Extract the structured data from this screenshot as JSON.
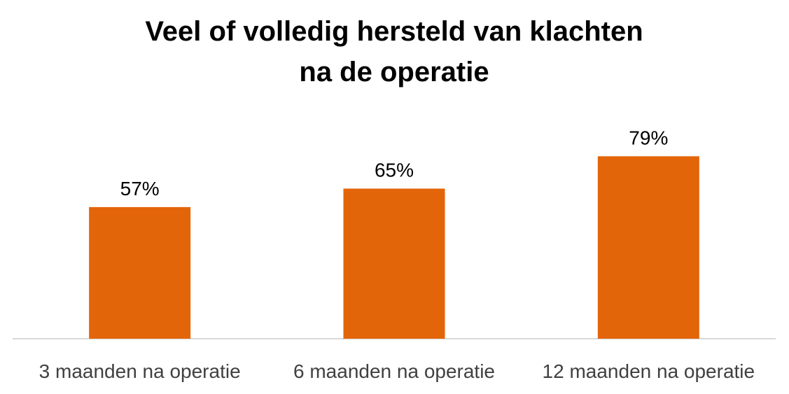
{
  "chart_data": {
    "type": "bar",
    "title_lines": [
      "Veel of volledig hersteld van klachten",
      "na de operatie"
    ],
    "categories": [
      "3 maanden na operatie",
      "6 maanden na operatie",
      "12 maanden na operatie"
    ],
    "values": [
      57,
      65,
      79
    ],
    "data_labels": [
      "57%",
      "65%",
      "79%"
    ],
    "value_unit": "%",
    "ylim": [
      0,
      100
    ],
    "grid": false,
    "legend": "none",
    "bar_color": "#E36509",
    "axis_color": "#D9D9D9"
  }
}
